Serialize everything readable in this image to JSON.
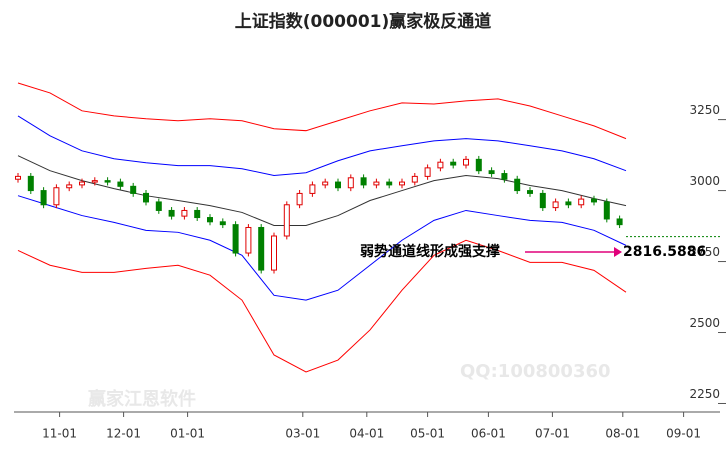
{
  "chart_data": {
    "type": "candlestick",
    "title": "上证指数(000001)赢家极反通道",
    "annotation": "弱势通道线形成强支撑",
    "annotation_value": "2816.5886",
    "watermarks": [
      "QQ:100800360",
      "赢家江恩软件"
    ],
    "xlim": [
      0,
      210
    ],
    "xticks": [
      {
        "value": 13,
        "label": "11-01"
      },
      {
        "value": 33,
        "label": "12-01"
      },
      {
        "value": 53,
        "label": "01-01"
      },
      {
        "value": 89,
        "label": "03-01"
      },
      {
        "value": 109,
        "label": "04-01"
      },
      {
        "value": 128,
        "label": "05-01"
      },
      {
        "value": 147,
        "label": "06-01"
      },
      {
        "value": 167,
        "label": "07-01"
      },
      {
        "value": 189,
        "label": "08-01"
      },
      {
        "value": 208,
        "label": "09-01"
      }
    ],
    "ylim": [
      2220,
      3460
    ],
    "yticks": [
      2250,
      2500,
      2750,
      3000,
      3250
    ],
    "up_color": "#e00000",
    "down_color": "#008000",
    "candles": {
      "x": [
        0,
        4,
        8,
        12,
        16,
        20,
        24,
        28,
        32,
        36,
        40,
        44,
        48,
        52,
        56,
        60,
        64,
        68,
        72,
        76,
        80,
        84,
        88,
        92,
        96,
        100,
        104,
        108,
        112,
        116,
        120,
        124,
        128,
        132,
        136,
        140,
        144,
        148,
        152,
        156,
        160,
        164,
        168,
        172,
        176,
        180,
        184,
        188
      ],
      "open": [
        3040,
        3050,
        3000,
        2950,
        3010,
        3020,
        3030,
        3035,
        3030,
        3015,
        2990,
        2960,
        2930,
        2910,
        2930,
        2905,
        2890,
        2880,
        2780,
        2870,
        2720,
        2840,
        2950,
        2990,
        3020,
        3030,
        3010,
        3045,
        3020,
        3030,
        3020,
        3030,
        3050,
        3080,
        3100,
        3090,
        3110,
        3070,
        3060,
        3040,
        3000,
        2990,
        2940,
        2960,
        2950,
        2970,
        2960,
        2900
      ],
      "high": [
        3062,
        3062,
        3012,
        3022,
        3032,
        3042,
        3047,
        3047,
        3042,
        3027,
        3002,
        2972,
        2942,
        2942,
        2942,
        2917,
        2902,
        2892,
        2882,
        2882,
        2852,
        2962,
        3002,
        3032,
        3042,
        3042,
        3057,
        3057,
        3042,
        3042,
        3042,
        3062,
        3092,
        3112,
        3112,
        3122,
        3122,
        3082,
        3072,
        3052,
        3012,
        3002,
        2972,
        2972,
        2982,
        2982,
        2972,
        2912
      ],
      "low": [
        3028,
        2988,
        2938,
        2938,
        2998,
        3008,
        3018,
        3018,
        3003,
        2978,
        2948,
        2918,
        2898,
        2898,
        2893,
        2878,
        2868,
        2768,
        2768,
        2708,
        2708,
        2828,
        2938,
        2978,
        3008,
        2998,
        2998,
        3008,
        3008,
        3008,
        3008,
        3018,
        3038,
        3068,
        3078,
        3078,
        3058,
        3048,
        3028,
        2988,
        2978,
        2928,
        2928,
        2938,
        2938,
        2948,
        2888,
        2868
      ],
      "close": [
        3050,
        3000,
        2950,
        3010,
        3020,
        3030,
        3035,
        3030,
        3015,
        2990,
        2960,
        2930,
        2910,
        2930,
        2905,
        2890,
        2880,
        2780,
        2870,
        2720,
        2840,
        2950,
        2990,
        3020,
        3030,
        3010,
        3045,
        3020,
        3030,
        3020,
        3030,
        3050,
        3080,
        3100,
        3090,
        3110,
        3070,
        3060,
        3040,
        3000,
        2990,
        2940,
        2960,
        2950,
        2970,
        2960,
        2900,
        2880
      ]
    },
    "channel_x": [
      0,
      10,
      20,
      30,
      40,
      50,
      60,
      70,
      80,
      90,
      100,
      110,
      120,
      130,
      140,
      150,
      160,
      170,
      180,
      190
    ],
    "channels": [
      {
        "color": "#ff0000",
        "values": [
          3379,
          3344,
          3281,
          3263,
          3253,
          3246,
          3253,
          3246,
          3218,
          3211,
          3246,
          3281,
          3309,
          3305,
          3316,
          3323,
          3298,
          3263,
          3228,
          3183
        ]
      },
      {
        "color": "#0000ff",
        "values": [
          3263,
          3193,
          3140,
          3112,
          3098,
          3088,
          3088,
          3077,
          3053,
          3063,
          3105,
          3140,
          3158,
          3175,
          3183,
          3175,
          3158,
          3140,
          3112,
          3070
        ]
      },
      {
        "color": "#333333",
        "values": [
          3123,
          3070,
          3035,
          3007,
          2982,
          2965,
          2947,
          2923,
          2877,
          2877,
          2912,
          2965,
          3000,
          3035,
          3053,
          3042,
          3018,
          3000,
          2972,
          2947
        ]
      },
      {
        "color": "#0000ff",
        "values": [
          2982,
          2947,
          2912,
          2888,
          2860,
          2853,
          2825,
          2772,
          2631,
          2614,
          2649,
          2737,
          2825,
          2895,
          2930,
          2912,
          2895,
          2888,
          2860,
          2807
        ]
      },
      {
        "color": "#ff0000",
        "values": [
          2789,
          2737,
          2712,
          2712,
          2726,
          2737,
          2702,
          2614,
          2421,
          2361,
          2403,
          2509,
          2649,
          2772,
          2825,
          2789,
          2747,
          2747,
          2719,
          2642
        ]
      }
    ],
    "reference_line": {
      "value": 2838,
      "x": [
        190,
        220
      ],
      "color": "#008000"
    }
  }
}
